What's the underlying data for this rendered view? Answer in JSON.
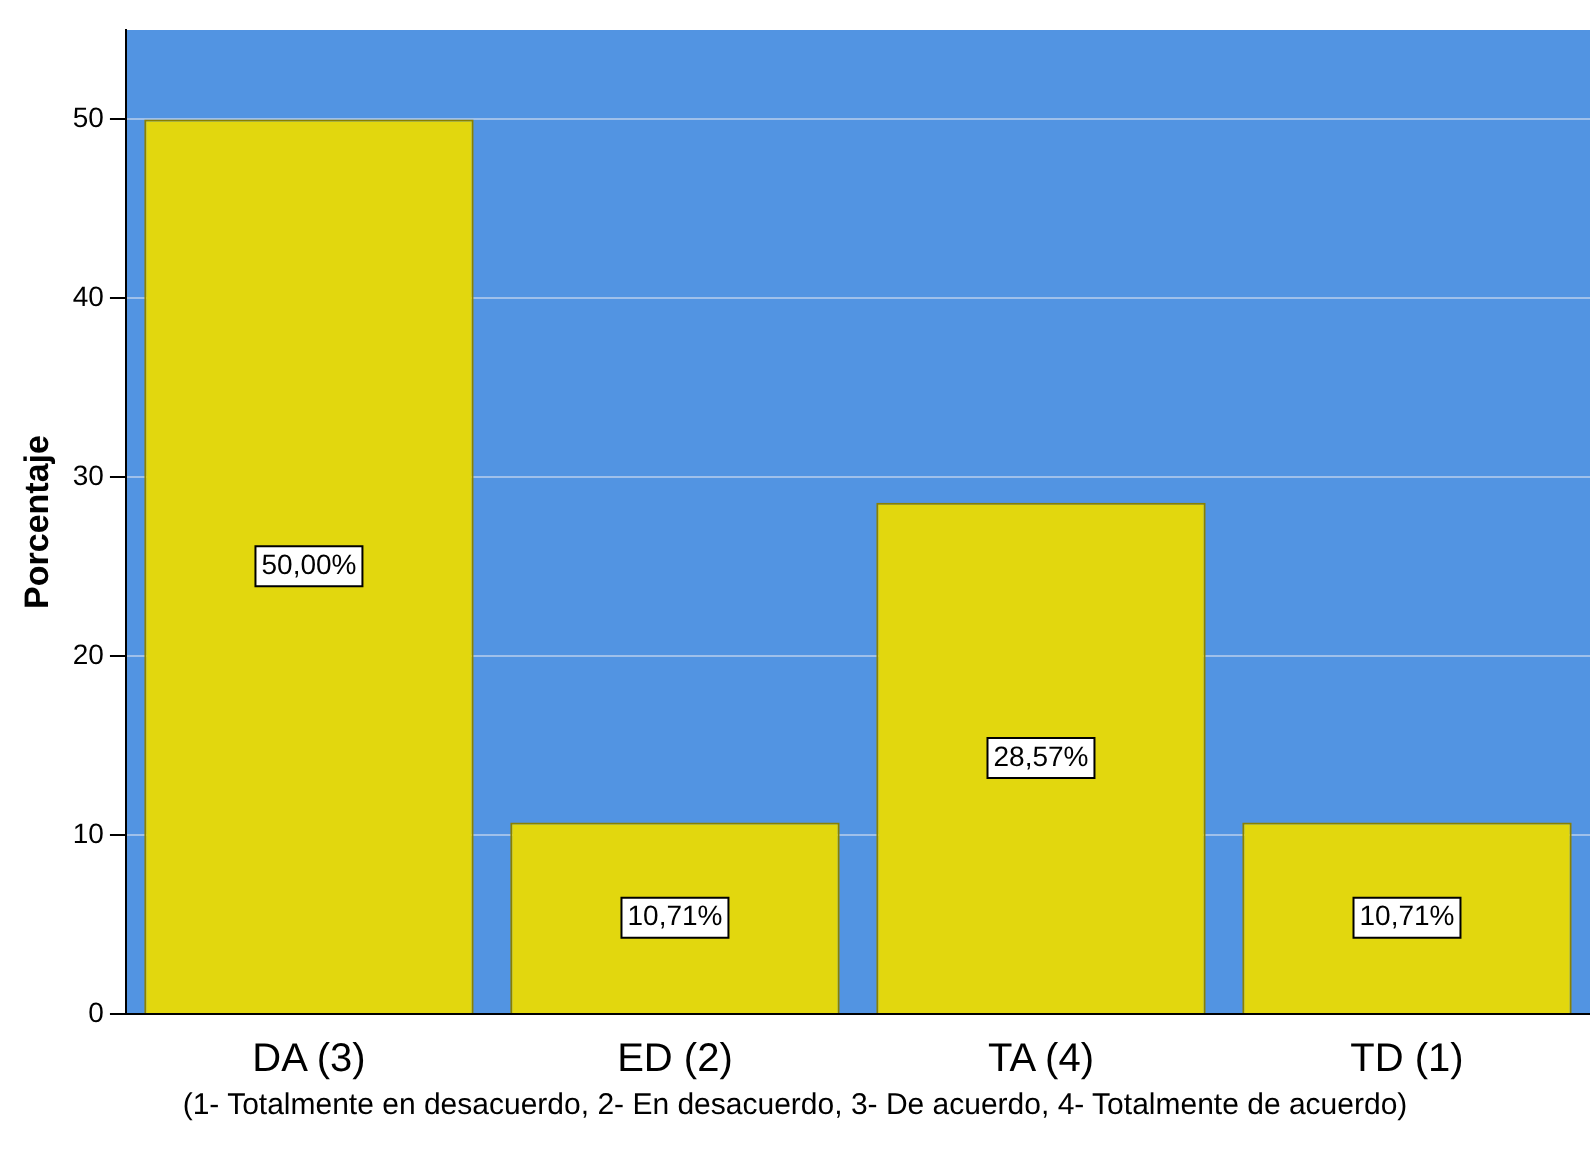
{
  "chart_data": {
    "type": "bar",
    "xlabel": "(1- Totalmente en desacuerdo, 2- En desacuerdo, 3- De acuerdo, 4- Totalmente de acuerdo)",
    "ylabel": "Porcentaje",
    "categories": [
      "DA (3)",
      "ED (2)",
      "TA (4)",
      "TD (1)"
    ],
    "values": [
      50,
      10.71,
      28.57,
      10.71
    ],
    "value_labels": [
      "50,00%",
      "10,71%",
      "28,57%",
      "10,71%"
    ],
    "color": "#e2d70e",
    "ylim": [
      0,
      55
    ],
    "yticks": [
      0,
      10,
      20,
      30,
      40,
      50
    ],
    "grid": "y"
  }
}
